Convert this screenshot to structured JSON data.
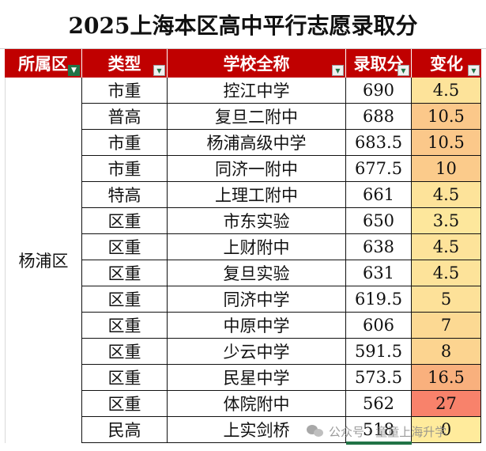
{
  "title": "2025上海本区高中平行志愿录取分",
  "headers": [
    {
      "label": "所属区",
      "filter": "funnel"
    },
    {
      "label": "类型",
      "filter": "dropdown"
    },
    {
      "label": "学校全称",
      "filter": "dropdown"
    },
    {
      "label": "录取分",
      "filter": "dropdown"
    },
    {
      "label": "变化",
      "filter": "dropdown"
    }
  ],
  "district": "杨浦区",
  "rows": [
    {
      "type": "市重",
      "school": "控江中学",
      "score": "690",
      "change": "4.5",
      "color": "#fde39a"
    },
    {
      "type": "普高",
      "school": "复旦二附中",
      "score": "688",
      "change": "10.5",
      "color": "#fbc88a"
    },
    {
      "type": "市重",
      "school": "杨浦高级中学",
      "score": "683.5",
      "change": "10.5",
      "color": "#fbc88a"
    },
    {
      "type": "市重",
      "school": "同济一附中",
      "score": "677.5",
      "change": "10",
      "color": "#fbcb8b"
    },
    {
      "type": "特高",
      "school": "上理工附中",
      "score": "661",
      "change": "4.5",
      "color": "#fde39a"
    },
    {
      "type": "区重",
      "school": "市东实验",
      "score": "650",
      "change": "3.5",
      "color": "#fde79c"
    },
    {
      "type": "区重",
      "school": "上财附中",
      "score": "638",
      "change": "4.5",
      "color": "#fde39a"
    },
    {
      "type": "区重",
      "school": "复旦实验",
      "score": "631",
      "change": "4.5",
      "color": "#fde39a"
    },
    {
      "type": "区重",
      "school": "同济中学",
      "score": "619.5",
      "change": "5",
      "color": "#fde199"
    },
    {
      "type": "区重",
      "school": "中原中学",
      "score": "606",
      "change": "7",
      "color": "#fcd993"
    },
    {
      "type": "区重",
      "school": "少云中学",
      "score": "591.5",
      "change": "8",
      "color": "#fcd490"
    },
    {
      "type": "区重",
      "school": "民星中学",
      "score": "573.5",
      "change": "16.5",
      "color": "#f9b07d"
    },
    {
      "type": "区重",
      "school": "体院附中",
      "score": "562",
      "change": "27",
      "color": "#f8826b"
    },
    {
      "type": "民高",
      "school": "上实剑桥",
      "score": "518",
      "change": "0",
      "color": "#ffeb9c"
    }
  ],
  "watermark": "公众号 · 童童上海升学"
}
